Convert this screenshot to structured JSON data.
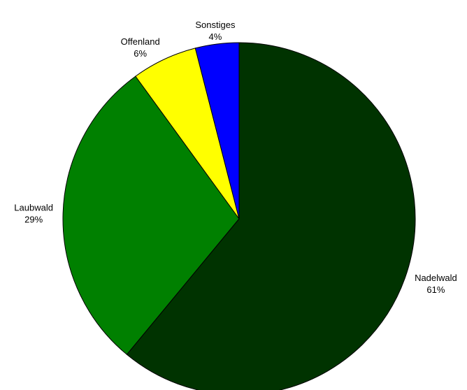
{
  "chart_data": {
    "type": "pie",
    "start": "12 o'clock, clockwise",
    "slices": [
      {
        "name": "Nadelwald",
        "value": 61,
        "label": "61%",
        "color": "#003300"
      },
      {
        "name": "Laubwald",
        "value": 29,
        "label": "29%",
        "color": "#008000"
      },
      {
        "name": "Offenland",
        "value": 6,
        "label": "6%",
        "color": "#FFFF00"
      },
      {
        "name": "Sonstiges",
        "value": 4,
        "label": "4%",
        "color": "#0000FF"
      }
    ],
    "outline_color": "#000000"
  }
}
